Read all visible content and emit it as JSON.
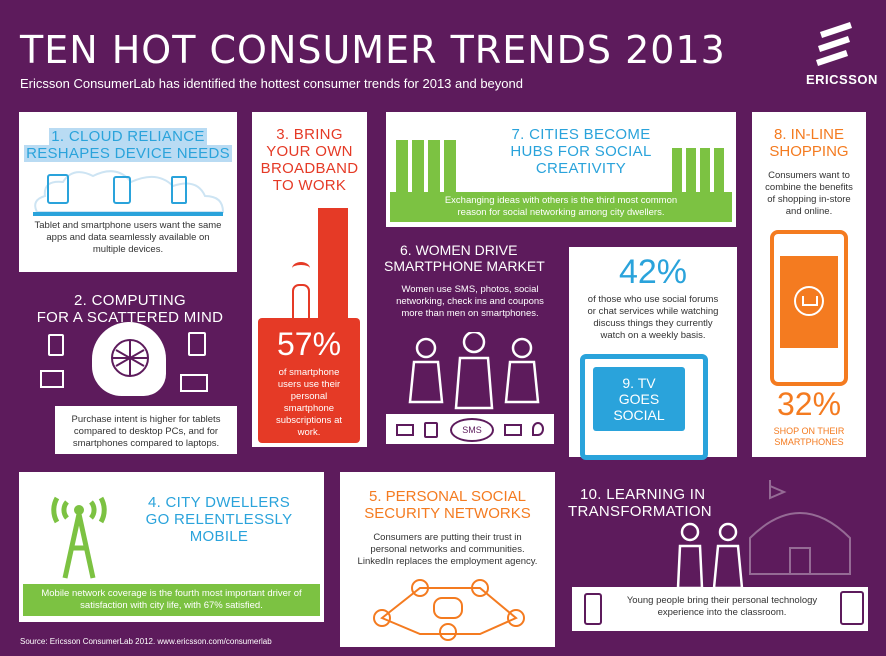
{
  "header": {
    "title": "TEN HOT CONSUMER TRENDS 2013",
    "subtitle": "Ericsson ConsumerLab has identified the hottest consumer trends for 2013 and beyond",
    "brand": "ERICSSON"
  },
  "trends": {
    "t1": {
      "title_line1": "1. CLOUD RELIANCE",
      "title_line2": "RESHAPES DEVICE NEEDS",
      "body": "Tablet and smartphone users want the same apps and data seamlessly available on multiple devices."
    },
    "t2": {
      "title_line1": "2. COMPUTING",
      "title_line2": "FOR A SCATTERED MIND",
      "body": "Purchase intent is higher for tablets compared to desktop PCs, and for smartphones compared to laptops."
    },
    "t3": {
      "title_line1": "3. BRING",
      "title_line2": "YOUR OWN",
      "title_line3": "BROADBAND",
      "title_line4": "TO WORK",
      "stat": "57%",
      "body": "of smartphone users use their personal smartphone subscriptions at work."
    },
    "t4": {
      "title_line1": "4. CITY DWELLERS",
      "title_line2": "GO RELENTLESSLY",
      "title_line3": "MOBILE",
      "body": "Mobile network coverage is the fourth most important driver of satisfaction with city life, with 67% satisfied."
    },
    "t5": {
      "title_line1": "5. PERSONAL SOCIAL",
      "title_line2": "SECURITY NETWORKS",
      "body": "Consumers are putting their trust in personal networks and communities. LinkedIn replaces the employment agency."
    },
    "t6": {
      "title_line1": "6. WOMEN DRIVE",
      "title_line2": "SMARTPHONE MARKET",
      "body": "Women use SMS, photos, social networking, check ins and coupons more than men on smartphones.",
      "sms": "SMS"
    },
    "t7": {
      "title_line1": "7. CITIES BECOME",
      "title_line2": "HUBS FOR SOCIAL",
      "title_line3": "CREATIVITY",
      "body": "Exchanging ideas with others is the third most common reason for social networking among city dwellers."
    },
    "t8": {
      "title_line1": "8. IN-LINE",
      "title_line2": "SHOPPING",
      "body": "Consumers want to combine the benefits of shopping in-store and online.",
      "stat": "32%",
      "stat_label": "SHOP ON THEIR SMARTPHONES"
    },
    "t9": {
      "stat": "42%",
      "body": "of those who use social forums or chat services while watching discuss things they currently watch on a weekly basis.",
      "tv_line1": "9. TV",
      "tv_line2": "GOES",
      "tv_line3": "SOCIAL"
    },
    "t10": {
      "title_line1": "10. LEARNING IN",
      "title_line2": "TRANSFORMATION",
      "body": "Young people bring their personal technology experience into the classroom."
    }
  },
  "footer": {
    "source": "Source: Ericsson ConsumerLab 2012. www.ericsson.com/consumerlab"
  },
  "colors": {
    "purple": "#5d1b5c",
    "blue": "#2aa3db",
    "orange": "#f47b20",
    "red": "#e53a26",
    "green": "#7cc242"
  },
  "icons": [
    "tablet-icon",
    "smartphone-icon",
    "feature-phone-icon",
    "brain-network-icon",
    "desktop-icon",
    "laptop-icon",
    "wifi-icon",
    "antenna-tower-icon",
    "cart-icon",
    "tv-icon",
    "school-icon",
    "women-icon",
    "students-icon"
  ]
}
